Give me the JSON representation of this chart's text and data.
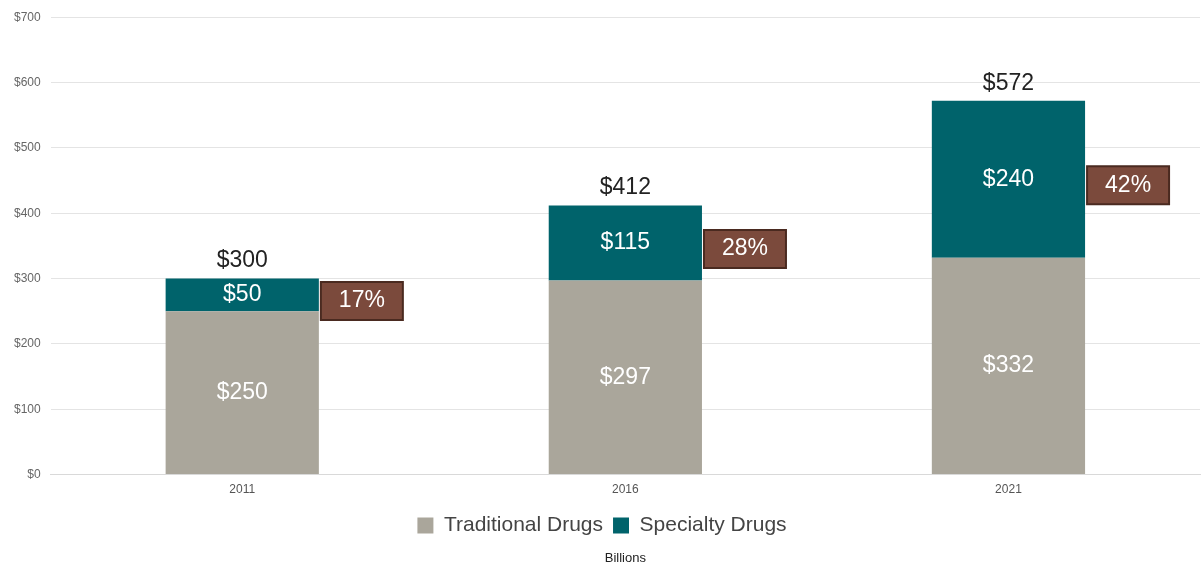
{
  "chart_data": {
    "type": "bar",
    "stacked": true,
    "xlabel": "Billions",
    "categories": [
      "2011",
      "2016",
      "2021"
    ],
    "series": [
      {
        "name": "Traditional Drugs",
        "color": "#aaa69b",
        "values": [
          250,
          297,
          332
        ],
        "value_labels": [
          "$250",
          "$297",
          "$332"
        ]
      },
      {
        "name": "Specialty Drugs",
        "color": "#00636b",
        "values": [
          50,
          115,
          240
        ],
        "value_labels": [
          "$50",
          "$115",
          "$240"
        ]
      }
    ],
    "totals": [
      "$300",
      "$412",
      "$572"
    ],
    "annotations": [
      "17%",
      "28%",
      "42%"
    ],
    "ylim": [
      0,
      700
    ],
    "yticks": [
      {
        "value": 0,
        "label": "$0"
      },
      {
        "value": 100,
        "label": "$100"
      },
      {
        "value": 200,
        "label": "$200"
      },
      {
        "value": 300,
        "label": "$300"
      },
      {
        "value": 400,
        "label": "$400"
      },
      {
        "value": 500,
        "label": "$500"
      },
      {
        "value": 600,
        "label": "$600"
      },
      {
        "value": 700,
        "label": "$700"
      }
    ],
    "grid": "y",
    "legend": "bottom"
  }
}
